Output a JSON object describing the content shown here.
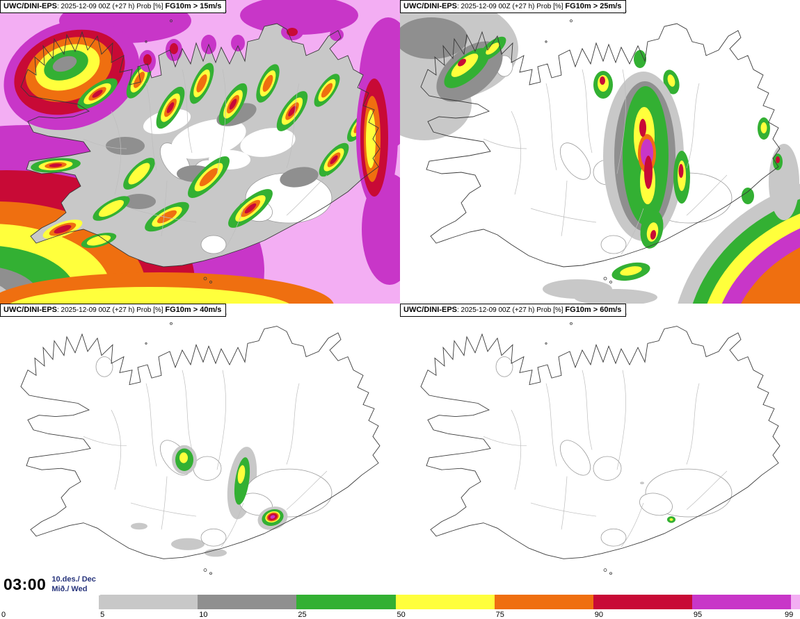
{
  "panels": [
    {
      "source": "UWC/DINI-EPS",
      "meta": ": 2025-12-09 00Z (+27 h) Prob [%] ",
      "threshold": "FG10m > 15m/s"
    },
    {
      "source": "UWC/DINI-EPS",
      "meta": ": 2025-12-09 00Z (+27 h) Prob [%] ",
      "threshold": "FG10m > 25m/s"
    },
    {
      "source": "UWC/DINI-EPS",
      "meta": ": 2025-12-09 00Z (+27 h) Prob [%] ",
      "threshold": "FG10m > 40m/s"
    },
    {
      "source": "UWC/DINI-EPS",
      "meta": ": 2025-12-09 00Z (+27 h) Prob [%] ",
      "threshold": "FG10m > 60m/s"
    }
  ],
  "time_label": {
    "time": "03:00",
    "date": "10.des./ Dec",
    "weekday": "Mið./ Wed"
  },
  "colorbar": {
    "tick_labels": [
      "0",
      "5",
      "10",
      "25",
      "50",
      "75",
      "90",
      "95",
      "99"
    ],
    "segment_colors": [
      "#ffffff",
      "#c8c8c8",
      "#8f8f8f",
      "#33b033",
      "#ffff3c",
      "#ef6f10",
      "#c80a36",
      "#c836c8",
      "#f3aef3"
    ]
  },
  "colors": {
    "w": "#ffffff",
    "g1": "#c8c8c8",
    "g2": "#8f8f8f",
    "gn": "#33b033",
    "yl": "#ffff3c",
    "or": "#ef6f10",
    "rd": "#c80a36",
    "mg": "#c836c8",
    "pk": "#f3aef3",
    "coast": "#383838",
    "boundary": "#bdbdbd",
    "glacier": "#9a9a9a"
  }
}
